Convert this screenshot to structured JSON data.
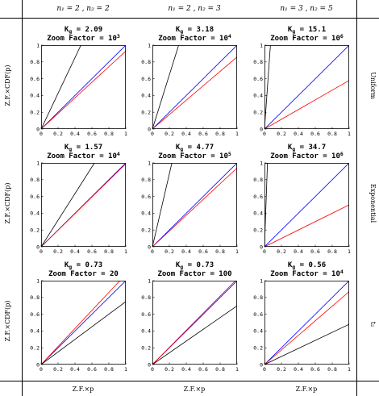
{
  "column_headers": [
    "n₁ = 2 , n₂ = 2",
    "n₁ = 2 , n₂ = 3",
    "n₁ = 3 , n₂ = 5"
  ],
  "row_labels": [
    "Uniform",
    "Exponential",
    "t₂"
  ],
  "ylabel": "Z.F.×CDF(p)",
  "xlabel": "Z.F.×p",
  "chart_data": [
    {
      "type": "line",
      "kg_label": "K",
      "kg_sub": "g",
      "kg_value": "= 2.09",
      "zf_label": "Zoom Factor = ",
      "zf_base": "10",
      "zf_exp": "3",
      "xlim": [
        0,
        1
      ],
      "ylim": [
        0,
        1
      ],
      "xticks": [
        "0",
        "0.2",
        "0.4",
        "0.6",
        "0.8",
        "1"
      ],
      "yticks": [
        "0",
        "0.2",
        "0.4",
        "0.6",
        "0.8",
        "1"
      ],
      "series": [
        {
          "color": "#0000ff",
          "x": [
            0,
            1
          ],
          "y": [
            0,
            1
          ]
        },
        {
          "color": "#ff0000",
          "x": [
            0,
            1
          ],
          "y": [
            0,
            0.93
          ]
        },
        {
          "color": "#000000",
          "x": [
            0,
            0.47
          ],
          "y": [
            0,
            1
          ]
        }
      ]
    },
    {
      "type": "line",
      "kg_label": "K",
      "kg_sub": "g",
      "kg_value": "= 3.18",
      "zf_label": "Zoom Factor = ",
      "zf_base": "10",
      "zf_exp": "4",
      "xlim": [
        0,
        1
      ],
      "ylim": [
        0,
        1
      ],
      "xticks": [
        "0",
        "0.2",
        "0.4",
        "0.6",
        "0.8",
        "1"
      ],
      "yticks": [
        "0",
        "0.2",
        "0.4",
        "0.6",
        "0.8",
        "1"
      ],
      "series": [
        {
          "color": "#0000ff",
          "x": [
            0,
            1
          ],
          "y": [
            0,
            1
          ]
        },
        {
          "color": "#ff0000",
          "x": [
            0,
            1
          ],
          "y": [
            0,
            0.86
          ]
        },
        {
          "color": "#000000",
          "x": [
            0,
            0.31
          ],
          "y": [
            0,
            1
          ]
        }
      ]
    },
    {
      "type": "line",
      "kg_label": "K",
      "kg_sub": "g",
      "kg_value": "= 15.1",
      "zf_label": "Zoom Factor = ",
      "zf_base": "10",
      "zf_exp": "6",
      "xlim": [
        0,
        1
      ],
      "ylim": [
        0,
        1
      ],
      "xticks": [
        "0",
        "0.2",
        "0.4",
        "0.6",
        "0.8",
        "1"
      ],
      "yticks": [
        "0",
        "0.2",
        "0.4",
        "0.6",
        "0.8",
        "1"
      ],
      "series": [
        {
          "color": "#0000ff",
          "x": [
            0,
            1
          ],
          "y": [
            0,
            1
          ]
        },
        {
          "color": "#ff0000",
          "x": [
            0,
            1
          ],
          "y": [
            0,
            0.58
          ]
        },
        {
          "color": "#000000",
          "x": [
            0,
            0.07
          ],
          "y": [
            0,
            1
          ]
        }
      ]
    },
    {
      "type": "line",
      "kg_label": "K",
      "kg_sub": "g",
      "kg_value": "= 1.57",
      "zf_label": "Zoom Factor = ",
      "zf_base": "10",
      "zf_exp": "4",
      "xlim": [
        0,
        1
      ],
      "ylim": [
        0,
        1
      ],
      "xticks": [
        "0",
        "0.2",
        "0.4",
        "0.6",
        "0.8",
        "1"
      ],
      "yticks": [
        "0",
        "0.2",
        "0.4",
        "0.6",
        "0.8",
        "1"
      ],
      "series": [
        {
          "color": "#0000ff",
          "x": [
            0,
            1
          ],
          "y": [
            0,
            1
          ]
        },
        {
          "color": "#ff0000",
          "x": [
            0,
            1
          ],
          "y": [
            0,
            0.99
          ]
        },
        {
          "color": "#000000",
          "x": [
            0,
            0.63
          ],
          "y": [
            0,
            1
          ]
        }
      ]
    },
    {
      "type": "line",
      "kg_label": "K",
      "kg_sub": "g",
      "kg_value": "= 4.77",
      "zf_label": "Zoom Factor = ",
      "zf_base": "10",
      "zf_exp": "5",
      "xlim": [
        0,
        1
      ],
      "ylim": [
        0,
        1
      ],
      "xticks": [
        "0",
        "0.2",
        "0.4",
        "0.6",
        "0.8",
        "1"
      ],
      "yticks": [
        "0",
        "0.2",
        "0.4",
        "0.6",
        "0.8",
        "1"
      ],
      "series": [
        {
          "color": "#0000ff",
          "x": [
            0,
            1
          ],
          "y": [
            0,
            1
          ]
        },
        {
          "color": "#ff0000",
          "x": [
            0,
            1
          ],
          "y": [
            0,
            0.94
          ]
        },
        {
          "color": "#000000",
          "x": [
            0,
            0.23
          ],
          "y": [
            0,
            1
          ]
        }
      ]
    },
    {
      "type": "line",
      "kg_label": "K",
      "kg_sub": "g",
      "kg_value": "= 34.7",
      "zf_label": "Zoom Factor = ",
      "zf_base": "10",
      "zf_exp": "6",
      "xlim": [
        0,
        1
      ],
      "ylim": [
        0,
        1
      ],
      "xticks": [
        "0",
        "0.2",
        "0.4",
        "0.6",
        "0.8",
        "1"
      ],
      "yticks": [
        "0",
        "0.2",
        "0.4",
        "0.6",
        "0.8",
        "1"
      ],
      "series": [
        {
          "color": "#0000ff",
          "x": [
            0,
            1
          ],
          "y": [
            0,
            1
          ]
        },
        {
          "color": "#ff0000",
          "x": [
            0,
            1
          ],
          "y": [
            0,
            0.5
          ]
        },
        {
          "color": "#000000",
          "x": [
            0,
            0.035
          ],
          "y": [
            0,
            1
          ]
        }
      ]
    },
    {
      "type": "line",
      "kg_label": "K",
      "kg_sub": "g",
      "kg_value": "= 0.73",
      "zf_label": "Zoom Factor = 20",
      "zf_base": "",
      "zf_exp": "",
      "xlim": [
        0,
        1
      ],
      "ylim": [
        0,
        1
      ],
      "xticks": [
        "0",
        "0.2",
        "0.4",
        "0.6",
        "0.8",
        "1"
      ],
      "yticks": [
        "0",
        "0.2",
        "0.4",
        "0.6",
        "0.8",
        "1"
      ],
      "series": [
        {
          "color": "#0000ff",
          "x": [
            0,
            1
          ],
          "y": [
            0,
            1
          ]
        },
        {
          "color": "#ff0000",
          "x": [
            0,
            0.93
          ],
          "y": [
            0,
            1
          ]
        },
        {
          "color": "#000000",
          "x": [
            0,
            1
          ],
          "y": [
            0,
            0.75
          ]
        }
      ]
    },
    {
      "type": "line",
      "kg_label": "K",
      "kg_sub": "g",
      "kg_value": "= 0.73",
      "zf_label": "Zoom Factor = 100",
      "zf_base": "",
      "zf_exp": "",
      "xlim": [
        0,
        1
      ],
      "ylim": [
        0,
        1
      ],
      "xticks": [
        "0",
        "0.2",
        "0.4",
        "0.6",
        "0.8",
        "1"
      ],
      "yticks": [
        "0",
        "0.2",
        "0.4",
        "0.6",
        "0.8",
        "1"
      ],
      "series": [
        {
          "color": "#0000ff",
          "x": [
            0,
            1
          ],
          "y": [
            0,
            1
          ]
        },
        {
          "color": "#ff0000",
          "x": [
            0,
            0.98
          ],
          "y": [
            0,
            1
          ]
        },
        {
          "color": "#000000",
          "x": [
            0,
            1
          ],
          "y": [
            0,
            0.7
          ]
        }
      ]
    },
    {
      "type": "line",
      "kg_label": "K",
      "kg_sub": "g",
      "kg_value": "= 0.56",
      "zf_label": "Zoom Factor = ",
      "zf_base": "10",
      "zf_exp": "4",
      "xlim": [
        0,
        1
      ],
      "ylim": [
        0,
        1
      ],
      "xticks": [
        "0",
        "0.2",
        "0.4",
        "0.6",
        "0.8",
        "1"
      ],
      "yticks": [
        "0",
        "0.2",
        "0.4",
        "0.6",
        "0.8",
        "1"
      ],
      "series": [
        {
          "color": "#0000ff",
          "x": [
            0,
            1
          ],
          "y": [
            0,
            1
          ]
        },
        {
          "color": "#ff0000",
          "x": [
            0,
            1
          ],
          "y": [
            0,
            0.87
          ]
        },
        {
          "color": "#000000",
          "x": [
            0,
            1
          ],
          "y": [
            0,
            0.48
          ]
        }
      ]
    }
  ]
}
